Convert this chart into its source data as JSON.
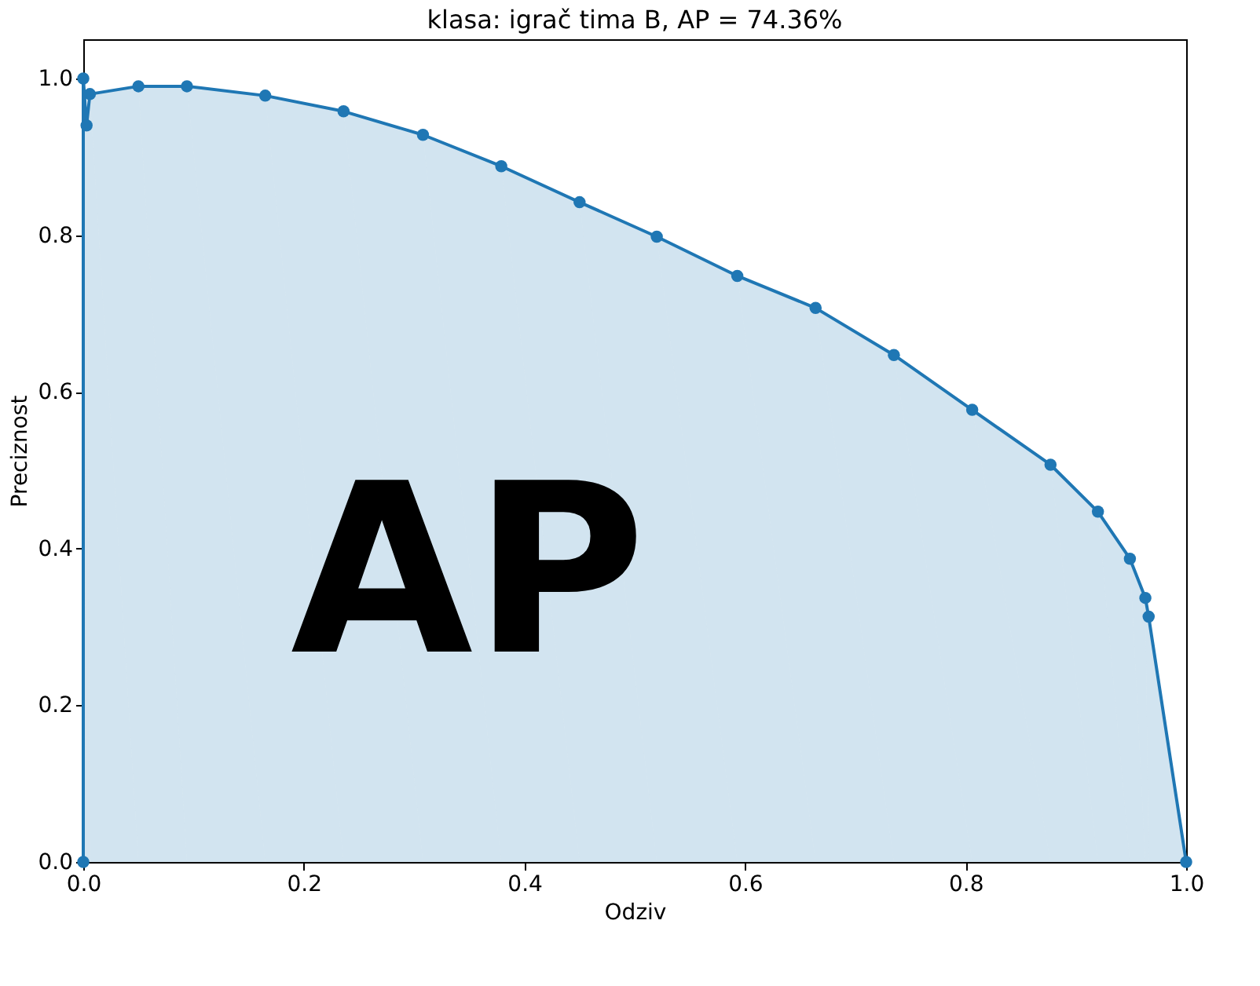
{
  "chart_data": {
    "type": "area",
    "title": "klasa: igrač tima B, AP = 74.36%",
    "xlabel": "Odziv",
    "ylabel": "Preciznost",
    "xlim": [
      0,
      1
    ],
    "ylim": [
      0,
      1.05
    ],
    "xticks": [
      {
        "value": 0,
        "label": "0.0"
      },
      {
        "value": 0.2,
        "label": "0.2"
      },
      {
        "value": 0.4,
        "label": "0.4"
      },
      {
        "value": 0.6,
        "label": "0.6"
      },
      {
        "value": 0.8,
        "label": "0.8"
      },
      {
        "value": 1,
        "label": "1.0"
      }
    ],
    "yticks": [
      {
        "value": 0,
        "label": "0.0"
      },
      {
        "value": 0.2,
        "label": "0.2"
      },
      {
        "value": 0.4,
        "label": "0.4"
      },
      {
        "value": 0.6,
        "label": "0.6"
      },
      {
        "value": 0.8,
        "label": "0.8"
      },
      {
        "value": 1,
        "label": "1.0"
      }
    ],
    "grid": false,
    "marker": "circle",
    "line_style": "solid",
    "annotations": [
      "AP"
    ],
    "series": [
      {
        "color": "#1f77b4",
        "x": [
          0,
          0,
          0.003,
          0.006,
          0.05,
          0.094,
          0.165,
          0.236,
          0.308,
          0.379,
          0.45,
          0.52,
          0.593,
          0.664,
          0.735,
          0.806,
          0.877,
          0.92,
          0.949,
          0.963,
          0.966,
          1.0
        ],
        "values": [
          0,
          1.0,
          0.94,
          0.98,
          0.99,
          0.99,
          0.978,
          0.958,
          0.928,
          0.888,
          0.842,
          0.798,
          0.748,
          0.707,
          0.647,
          0.577,
          0.507,
          0.447,
          0.387,
          0.337,
          0.313,
          0
        ]
      }
    ]
  }
}
